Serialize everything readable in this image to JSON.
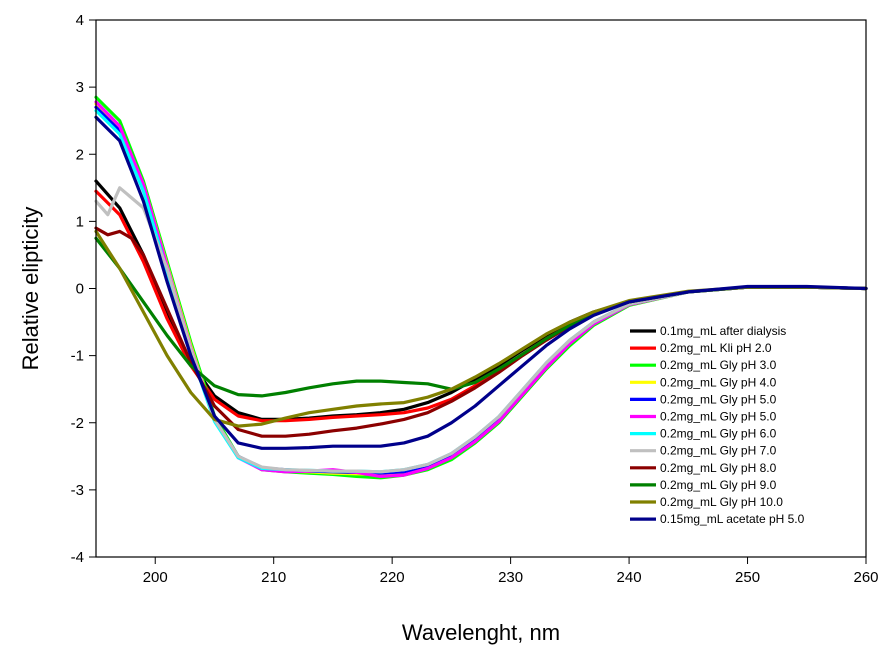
{
  "chart_data": {
    "type": "line",
    "title": "",
    "xlabel": "Wavelenght, nm",
    "ylabel": "Relative elipticity",
    "xlim": [
      195,
      260
    ],
    "ylim": [
      -4,
      4
    ],
    "xticks": [
      200,
      210,
      220,
      230,
      240,
      250,
      260
    ],
    "yticks": [
      -4,
      -3,
      -2,
      -1,
      0,
      1,
      2,
      3,
      4
    ],
    "grid": false,
    "legend_position": "bottom-right",
    "series": [
      {
        "name": "0.1mg_mL after dialysis",
        "color": "#000000",
        "x": [
          195,
          197,
          199,
          201,
          203,
          205,
          207,
          209,
          211,
          213,
          215,
          217,
          219,
          221,
          223,
          225,
          227,
          229,
          231,
          233,
          235,
          237,
          240,
          245,
          250,
          255,
          260
        ],
        "y": [
          1.6,
          1.2,
          0.5,
          -0.4,
          -1.1,
          -1.6,
          -1.85,
          -1.95,
          -1.95,
          -1.93,
          -1.9,
          -1.88,
          -1.85,
          -1.8,
          -1.7,
          -1.55,
          -1.35,
          -1.15,
          -0.92,
          -0.7,
          -0.5,
          -0.35,
          -0.2,
          -0.05,
          0.02,
          0.02,
          0
        ]
      },
      {
        "name": "0.2mg_mL Kli pH 2.0",
        "color": "#ff0000",
        "x": [
          195,
          197,
          199,
          201,
          203,
          205,
          207,
          209,
          211,
          213,
          215,
          217,
          219,
          221,
          223,
          225,
          227,
          229,
          231,
          233,
          235,
          237,
          240,
          245,
          250,
          255,
          260
        ],
        "y": [
          1.45,
          1.1,
          0.4,
          -0.45,
          -1.15,
          -1.65,
          -1.9,
          -1.97,
          -1.97,
          -1.95,
          -1.92,
          -1.9,
          -1.88,
          -1.85,
          -1.78,
          -1.65,
          -1.45,
          -1.22,
          -0.98,
          -0.75,
          -0.55,
          -0.38,
          -0.2,
          -0.05,
          0.02,
          0.02,
          0
        ]
      },
      {
        "name": "0.2mg_mL Gly pH 3.0",
        "color": "#00ff00",
        "x": [
          195,
          197,
          199,
          201,
          203,
          205,
          207,
          209,
          211,
          213,
          215,
          217,
          219,
          221,
          223,
          225,
          227,
          229,
          231,
          233,
          235,
          237,
          240,
          245,
          250,
          255,
          260
        ],
        "y": [
          2.85,
          2.5,
          1.6,
          0.4,
          -0.8,
          -1.9,
          -2.5,
          -2.7,
          -2.73,
          -2.75,
          -2.77,
          -2.8,
          -2.82,
          -2.78,
          -2.7,
          -2.55,
          -2.3,
          -2.0,
          -1.6,
          -1.2,
          -0.85,
          -0.55,
          -0.25,
          -0.05,
          0.02,
          0.02,
          0
        ]
      },
      {
        "name": "0.2mg_mL Gly pH 4.0",
        "color": "#ffff00",
        "x": [
          195,
          197,
          199,
          201,
          203,
          205,
          207,
          209,
          211,
          213,
          215,
          217,
          219,
          221,
          223,
          225,
          227,
          229,
          231,
          233,
          235,
          237,
          240,
          245,
          250,
          255,
          260
        ],
        "y": [
          2.75,
          2.4,
          1.55,
          0.35,
          -0.85,
          -1.95,
          -2.5,
          -2.68,
          -2.72,
          -2.73,
          -2.75,
          -2.76,
          -2.77,
          -2.75,
          -2.66,
          -2.5,
          -2.25,
          -1.95,
          -1.55,
          -1.15,
          -0.8,
          -0.52,
          -0.24,
          -0.05,
          0.02,
          0.02,
          0
        ]
      },
      {
        "name": "0.2mg_mL Gly pH 5.0",
        "color": "#0000ff",
        "x": [
          195,
          197,
          199,
          201,
          203,
          205,
          207,
          209,
          211,
          213,
          215,
          217,
          219,
          221,
          223,
          225,
          227,
          229,
          231,
          233,
          235,
          237,
          240,
          245,
          250,
          255,
          260
        ],
        "y": [
          2.7,
          2.35,
          1.5,
          0.3,
          -0.9,
          -1.95,
          -2.5,
          -2.67,
          -2.7,
          -2.72,
          -2.73,
          -2.74,
          -2.75,
          -2.73,
          -2.64,
          -2.48,
          -2.23,
          -1.93,
          -1.53,
          -1.13,
          -0.78,
          -0.5,
          -0.23,
          -0.05,
          0.02,
          0.02,
          0
        ]
      },
      {
        "name": "0.2mg_mL Gly pH 5.0",
        "color": "#ff00ff",
        "x": [
          195,
          197,
          199,
          201,
          203,
          205,
          207,
          209,
          211,
          213,
          215,
          217,
          219,
          221,
          223,
          225,
          227,
          229,
          231,
          233,
          235,
          237,
          240,
          245,
          250,
          255,
          260
        ],
        "y": [
          2.78,
          2.42,
          1.55,
          0.33,
          -0.88,
          -1.95,
          -2.52,
          -2.7,
          -2.73,
          -2.72,
          -2.7,
          -2.74,
          -2.8,
          -2.78,
          -2.68,
          -2.52,
          -2.28,
          -1.98,
          -1.58,
          -1.18,
          -0.82,
          -0.53,
          -0.24,
          -0.05,
          0.02,
          0.02,
          0
        ]
      },
      {
        "name": "0.2mg_mL Gly pH 6.0",
        "color": "#00ffff",
        "x": [
          195,
          197,
          199,
          201,
          203,
          205,
          207,
          209,
          211,
          213,
          215,
          217,
          219,
          221,
          223,
          225,
          227,
          229,
          231,
          233,
          235,
          237,
          240,
          245,
          250,
          255,
          260
        ],
        "y": [
          2.65,
          2.3,
          1.45,
          0.25,
          -0.95,
          -1.98,
          -2.52,
          -2.68,
          -2.7,
          -2.71,
          -2.72,
          -2.72,
          -2.73,
          -2.7,
          -2.62,
          -2.46,
          -2.21,
          -1.91,
          -1.51,
          -1.11,
          -0.77,
          -0.5,
          -0.23,
          -0.05,
          0.02,
          0.02,
          0
        ]
      },
      {
        "name": "0.2mg_mL Gly pH 7.0",
        "color": "#c0c0c0",
        "x": [
          195,
          196,
          197,
          199,
          201,
          203,
          205,
          207,
          209,
          211,
          213,
          215,
          217,
          219,
          221,
          223,
          225,
          227,
          229,
          231,
          233,
          235,
          237,
          240,
          245,
          250,
          255,
          260
        ],
        "y": [
          1.3,
          1.1,
          1.5,
          1.2,
          0.3,
          -0.9,
          -1.95,
          -2.5,
          -2.66,
          -2.7,
          -2.71,
          -2.72,
          -2.72,
          -2.73,
          -2.7,
          -2.62,
          -2.46,
          -2.21,
          -1.91,
          -1.51,
          -1.11,
          -0.77,
          -0.5,
          -0.23,
          -0.05,
          0.02,
          0.02,
          0
        ]
      },
      {
        "name": "0.2mg_mL Gly pH 8.0",
        "color": "#8b0000",
        "x": [
          195,
          196,
          197,
          198,
          199,
          201,
          203,
          205,
          207,
          209,
          211,
          213,
          215,
          217,
          219,
          221,
          223,
          225,
          227,
          229,
          231,
          233,
          235,
          237,
          240,
          245,
          250,
          255,
          260
        ],
        "y": [
          0.9,
          0.8,
          0.85,
          0.75,
          0.5,
          -0.3,
          -1.1,
          -1.75,
          -2.1,
          -2.2,
          -2.2,
          -2.17,
          -2.12,
          -2.08,
          -2.02,
          -1.95,
          -1.85,
          -1.68,
          -1.48,
          -1.25,
          -1.0,
          -0.77,
          -0.56,
          -0.38,
          -0.2,
          -0.05,
          0.02,
          0.02,
          0
        ]
      },
      {
        "name": "0.2mg_mL Gly pH 9.0",
        "color": "#008000",
        "x": [
          195,
          197,
          199,
          201,
          203,
          205,
          207,
          209,
          211,
          213,
          215,
          217,
          219,
          221,
          223,
          225,
          227,
          229,
          231,
          233,
          235,
          237,
          240,
          245,
          250,
          255,
          260
        ],
        "y": [
          0.75,
          0.3,
          -0.2,
          -0.7,
          -1.15,
          -1.45,
          -1.58,
          -1.6,
          -1.55,
          -1.48,
          -1.42,
          -1.38,
          -1.38,
          -1.4,
          -1.42,
          -1.5,
          -1.4,
          -1.2,
          -0.98,
          -0.75,
          -0.55,
          -0.38,
          -0.2,
          -0.05,
          0.02,
          0.02,
          0
        ]
      },
      {
        "name": "0.2mg_mL Gly pH 10.0",
        "color": "#808000",
        "x": [
          195,
          197,
          199,
          201,
          203,
          205,
          207,
          209,
          211,
          213,
          215,
          217,
          219,
          221,
          223,
          225,
          227,
          229,
          231,
          233,
          235,
          237,
          240,
          245,
          250,
          255,
          260
        ],
        "y": [
          0.85,
          0.3,
          -0.35,
          -1.0,
          -1.55,
          -1.95,
          -2.05,
          -2.02,
          -1.93,
          -1.85,
          -1.8,
          -1.75,
          -1.72,
          -1.7,
          -1.62,
          -1.5,
          -1.32,
          -1.12,
          -0.9,
          -0.68,
          -0.5,
          -0.35,
          -0.18,
          -0.04,
          0.02,
          0.02,
          0
        ]
      },
      {
        "name": "0.15mg_mL acetate pH 5.0",
        "color": "#00008b",
        "x": [
          195,
          197,
          199,
          201,
          203,
          205,
          207,
          209,
          211,
          213,
          215,
          217,
          219,
          221,
          223,
          225,
          227,
          229,
          231,
          233,
          235,
          237,
          240,
          245,
          250,
          255,
          260
        ],
        "y": [
          2.55,
          2.2,
          1.3,
          0.1,
          -1.0,
          -1.9,
          -2.3,
          -2.38,
          -2.38,
          -2.37,
          -2.35,
          -2.35,
          -2.35,
          -2.3,
          -2.2,
          -2.0,
          -1.75,
          -1.45,
          -1.15,
          -0.85,
          -0.6,
          -0.4,
          -0.2,
          -0.05,
          0.03,
          0.03,
          0
        ]
      }
    ]
  }
}
